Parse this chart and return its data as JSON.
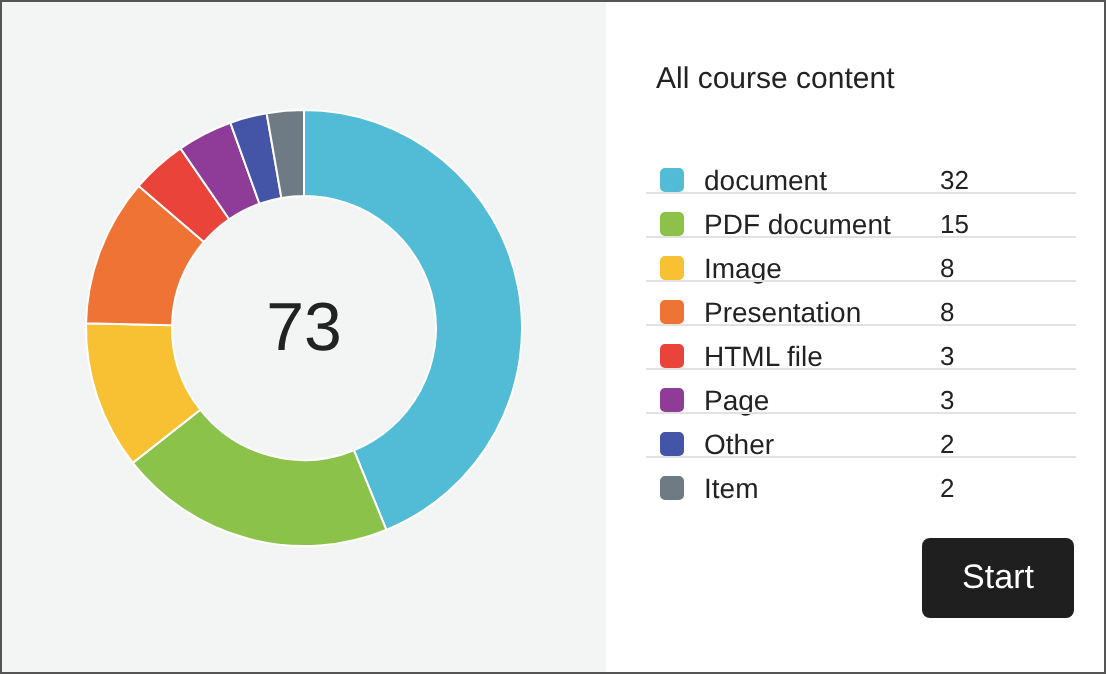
{
  "chart_data": {
    "type": "donut",
    "title": "All course content",
    "categories": [
      "document",
      "PDF document",
      "Image",
      "Presentation",
      "HTML file",
      "Page",
      "Other",
      "Item"
    ],
    "values": [
      32,
      15,
      8,
      8,
      3,
      3,
      2,
      2
    ],
    "colors": [
      "#52bcd6",
      "#8bc34a",
      "#f8c133",
      "#ef7334",
      "#ea4339",
      "#8e3c98",
      "#4454a6",
      "#6f7b84"
    ],
    "data_labels": true,
    "legend": "right",
    "annotations": [
      "73",
      "Start"
    ]
  }
}
